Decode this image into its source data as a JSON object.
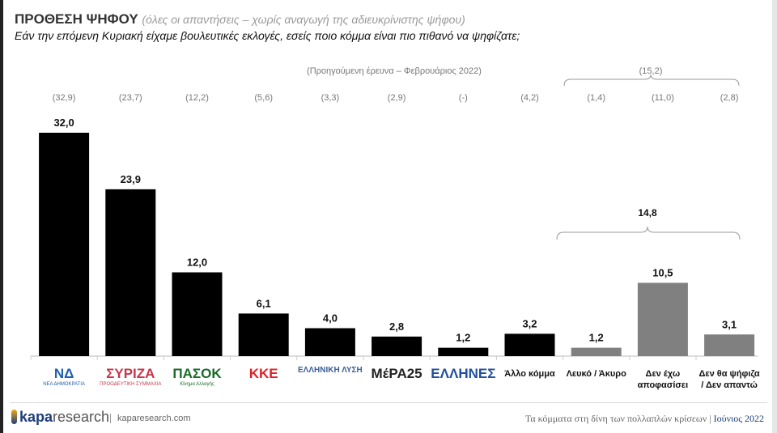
{
  "header": {
    "title": "ΠΡΟΘΕΣΗ ΨΗΦΟΥ",
    "title_note": "(όλες οι απαντήσεις – χωρίς αναγωγή της αδιευκρίνιστης ψήφου)",
    "question": "Εάν την επόμενη Κυριακή είχαμε βουλευτικές εκλογές, εσείς ποιο κόμμα είναι πιο πιθανό να ψηφίζατε;"
  },
  "chart_data": {
    "type": "bar",
    "categories": [
      "ΝΕΑ ΔΗΜΟΚΡΑΤΙΑ",
      "ΣΥΡΙΖΑ",
      "ΠΑΣΟΚ Κίνημα Αλλαγής",
      "ΚΚΕ",
      "ΕΛΛΗΝΙΚΗ ΛΥΣΗ",
      "ΜέΡΑ25",
      "ΕΛΛΗΝΕΣ",
      "Άλλο κόμμα",
      "Λευκό / Άκυρο",
      "Δεν έχω αποφασίσει",
      "Δεν θα ψήφιζα / Δεν απαντώ"
    ],
    "values": [
      32.0,
      23.9,
      12.0,
      6.1,
      4.0,
      2.8,
      1.2,
      3.2,
      1.2,
      10.5,
      3.1
    ],
    "value_labels": [
      "32,0",
      "23,9",
      "12,0",
      "6,1",
      "4,0",
      "2,8",
      "1,2",
      "3,2",
      "1,2",
      "10,5",
      "3,1"
    ],
    "previous_labels": [
      "(32,9)",
      "(23,7)",
      "(12,2)",
      "(5,6)",
      "(3,3)",
      "(2,9)",
      "(-)",
      "(4,2)",
      "(1,4)",
      "(11,0)",
      "(2,8)"
    ],
    "previous_caption": "(Προηγούμενη έρευνα – Φεβρουάριος 2022)",
    "previous_group_total": "(15,2)",
    "group_total": "14,8",
    "colors": [
      "#000000",
      "#000000",
      "#000000",
      "#000000",
      "#000000",
      "#000000",
      "#000000",
      "#000000",
      "#808080",
      "#808080",
      "#808080"
    ],
    "ylim": [
      0,
      33
    ]
  },
  "logos": [
    {
      "text": "ΝΔ",
      "sub": "ΝΕΑ ΔΗΜΟΚΡΑΤΙΑ",
      "color": "#1f5fae"
    },
    {
      "text": "ΣΥΡΙΖΑ",
      "sub": "ΠΡΟΟΔΕΥΤΙΚΗ ΣΥΜΜΑΧΙΑ",
      "color": "#c8364a"
    },
    {
      "text": "ΠΑΣΟΚ",
      "sub": "Κίνημα Αλλαγής",
      "color": "#1a6b2a"
    },
    {
      "text": "ΚΚΕ",
      "sub": "",
      "color": "#e3202a"
    },
    {
      "text": "ΕΛΛΗΝΙΚΗ ΛΥΣΗ",
      "sub": "",
      "color": "#3a5f9a"
    },
    {
      "text": "ΜέΡΑ25",
      "sub": "",
      "color": "#222222"
    },
    {
      "text": "ΕΛΛΗΝΕΣ",
      "sub": "",
      "color": "#1f4fa0"
    }
  ],
  "text_categories": [
    "Άλλο κόμμα",
    "Λευκό / Άκυρο",
    "Δεν έχω αποφασίσει",
    "Δεν θα ψήφιζα / Δεν απαντώ"
  ],
  "footer": {
    "brand_bold": "kapa",
    "brand_rest": "research",
    "site": "kaparesearch.com",
    "caption": "Τα κόμματα στη δίνη των πολλαπλών κρίσεων |",
    "date": "Ιούνιος 2022"
  }
}
